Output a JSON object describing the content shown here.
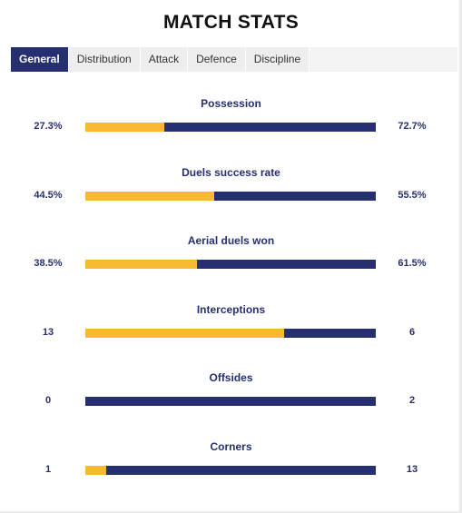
{
  "title": "MATCH STATS",
  "tabs": [
    {
      "label": "General",
      "active": true
    },
    {
      "label": "Distribution",
      "active": false
    },
    {
      "label": "Attack",
      "active": false
    },
    {
      "label": "Defence",
      "active": false
    },
    {
      "label": "Discipline",
      "active": false
    }
  ],
  "colors": {
    "home_bar": "#f7b932",
    "away_bar": "#263070",
    "text_accent": "#263070"
  },
  "stats": [
    {
      "label": "Possession",
      "home": "27.3%",
      "away": "72.7%",
      "home_share": 0.273
    },
    {
      "label": "Duels success rate",
      "home": "44.5%",
      "away": "55.5%",
      "home_share": 0.445
    },
    {
      "label": "Aerial duels won",
      "home": "38.5%",
      "away": "61.5%",
      "home_share": 0.385
    },
    {
      "label": "Interceptions",
      "home": "13",
      "away": "6",
      "home_share": 0.684
    },
    {
      "label": "Offsides",
      "home": "0",
      "away": "2",
      "home_share": 0.0
    },
    {
      "label": "Corners",
      "home": "1",
      "away": "13",
      "home_share": 0.071
    }
  ]
}
